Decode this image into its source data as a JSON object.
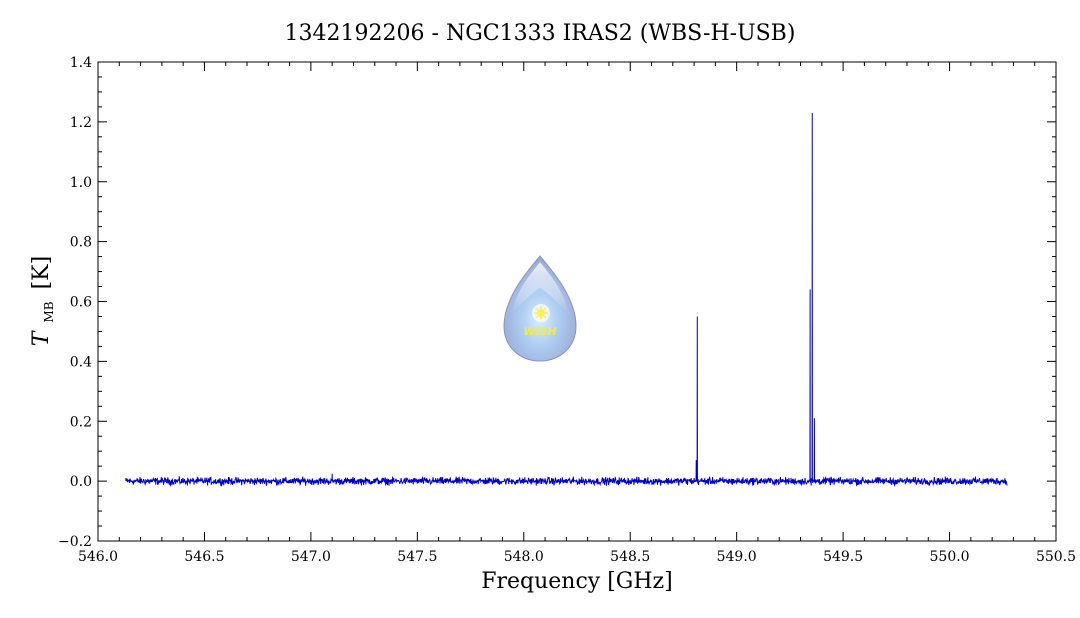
{
  "chart_data": {
    "type": "line",
    "title": "1342192206 - NGC1333 IRAS2 (WBS-H-USB)",
    "xlabel": "Frequency [GHz]",
    "ylabel_main": "T",
    "ylabel_sub": "MB",
    "ylabel_unit": "[K]",
    "xlim": [
      546.0,
      550.5
    ],
    "ylim": [
      -0.2,
      1.4
    ],
    "x_ticks": [
      "546.0",
      "546.5",
      "547.0",
      "547.5",
      "548.0",
      "548.5",
      "549.0",
      "549.5",
      "550.0",
      "550.5"
    ],
    "y_ticks": [
      "-0.2",
      "0.0",
      "0.2",
      "0.4",
      "0.6",
      "0.8",
      "1.0",
      "1.2",
      "1.4"
    ],
    "grid": false,
    "series_color": "#0000cc",
    "x_range": [
      546.13,
      550.27
    ],
    "baseline": 0.0,
    "noise_rms": 0.006,
    "peaks": [
      {
        "x": 547.1,
        "y": 0.025
      },
      {
        "x": 548.81,
        "y": 0.07
      },
      {
        "x": 548.815,
        "y": 0.55
      },
      {
        "x": 549.345,
        "y": 0.64
      },
      {
        "x": 549.355,
        "y": 1.23
      },
      {
        "x": 549.365,
        "y": 0.21
      }
    ],
    "dips": [
      {
        "x": 549.35,
        "y": -0.015
      }
    ]
  },
  "logo": {
    "text": "WISH",
    "colors": {
      "drop": "#8fa6d8",
      "glow": "#d8f0ff",
      "star": "#f7f060"
    }
  }
}
